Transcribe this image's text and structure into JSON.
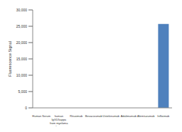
{
  "chart_data": {
    "type": "bar",
    "y_label": "Fluorescence Signal",
    "categories": [
      "Human Serum",
      "human IgG1/kappa from myeloma plasma",
      "Rituximab",
      "Bevacizumab",
      "Ustekinumab",
      "Adalimumab",
      "Alemtuzumab",
      "Infliximab"
    ],
    "values": [
      0,
      0,
      0,
      0,
      0,
      0,
      0,
      25700
    ],
    "color": "#4f81bd",
    "ylim": [
      0,
      30000
    ],
    "yticks": [
      0,
      {
        "value": 5000,
        "label": "5,000"
      },
      {
        "value": 10000,
        "label": "10,000"
      },
      {
        "value": 15000,
        "label": "15,000"
      },
      {
        "value": 20000,
        "label": "20,000"
      },
      {
        "value": 25000,
        "label": "25,000"
      },
      {
        "value": 30000,
        "label": "30,000"
      }
    ],
    "grid": false
  }
}
